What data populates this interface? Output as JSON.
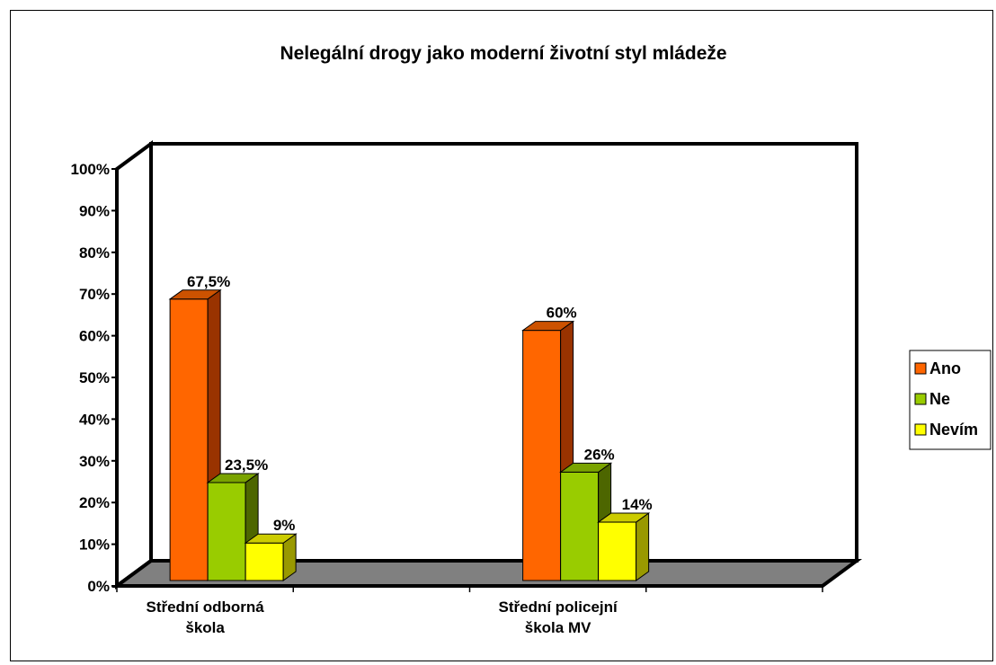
{
  "chart_data": {
    "type": "bar",
    "title": "Nelegální drogy jako moderní životní styl mládeže",
    "categories": [
      [
        "Střední odborná",
        "škola"
      ],
      [
        "Střední policejní",
        "škola MV"
      ]
    ],
    "series": [
      {
        "name": "Ano",
        "values": [
          67.5,
          60
        ],
        "labels": [
          "67,5%",
          "60%"
        ],
        "color": "#ff6600",
        "side": "#993300",
        "top": "#cc5200"
      },
      {
        "name": "Ne",
        "values": [
          23.5,
          26
        ],
        "labels": [
          "23,5%",
          "26%"
        ],
        "color": "#99cc00",
        "side": "#4d6600",
        "top": "#7aa300"
      },
      {
        "name": "Nevím",
        "values": [
          9,
          14
        ],
        "labels": [
          "9%",
          "14%"
        ],
        "color": "#ffff00",
        "side": "#999900",
        "top": "#cccc00"
      }
    ],
    "yticks": [
      "0%",
      "10%",
      "20%",
      "30%",
      "40%",
      "50%",
      "60%",
      "70%",
      "80%",
      "90%",
      "100%"
    ],
    "ylim": [
      0,
      100
    ],
    "floor_color": "#808080",
    "legend_position": "right",
    "grid": false
  }
}
